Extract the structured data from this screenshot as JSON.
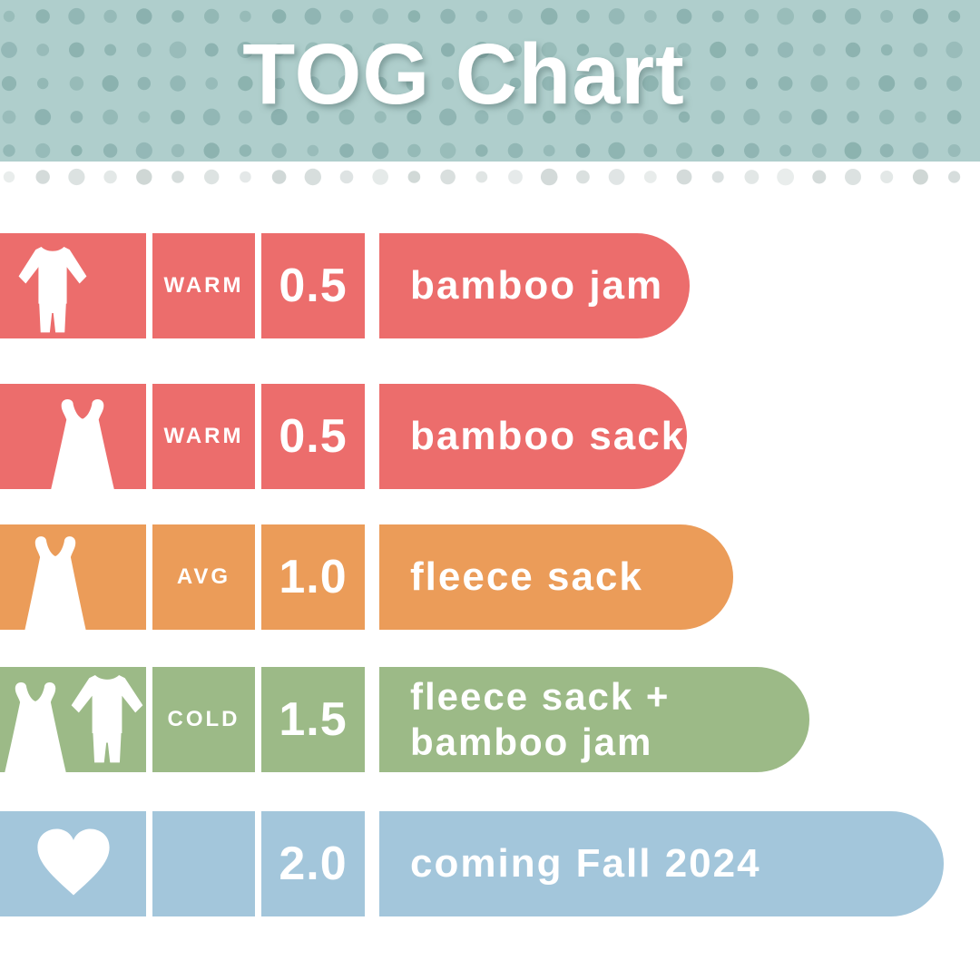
{
  "header": {
    "title": "TOG Chart",
    "background": "#AFCECC",
    "dot_color": "#7FA8A5",
    "below_banner_dot_color": "#AAB8B6"
  },
  "rows": [
    {
      "icons": [
        "pajamas-icon"
      ],
      "temp": "WARM",
      "tog": "0.5",
      "name": "bamboo jam",
      "color": "#EC6D6C"
    },
    {
      "icons": [
        "sleep-sack-icon"
      ],
      "temp": "WARM",
      "tog": "0.5",
      "name": "bamboo sack",
      "color": "#EC6D6C"
    },
    {
      "icons": [
        "sleep-sack-icon"
      ],
      "temp": "AVG",
      "tog": "1.0",
      "name": "fleece sack",
      "color": "#EB9C59"
    },
    {
      "icons": [
        "sleep-sack-icon",
        "pajamas-icon"
      ],
      "temp": "COLD",
      "tog": "1.5",
      "name": "fleece sack +\nbamboo jam",
      "color": "#9CBA87"
    },
    {
      "icons": [
        "heart-icon"
      ],
      "temp": "",
      "tog": "2.0",
      "name": "coming Fall 2024",
      "color": "#A3C6DB"
    }
  ],
  "chart_data": {
    "type": "table",
    "title": "TOG Chart",
    "columns": [
      "temperature",
      "tog",
      "product"
    ],
    "rows": [
      {
        "temperature": "WARM",
        "tog": 0.5,
        "product": "bamboo jam"
      },
      {
        "temperature": "WARM",
        "tog": 0.5,
        "product": "bamboo sack"
      },
      {
        "temperature": "AVG",
        "tog": 1.0,
        "product": "fleece sack"
      },
      {
        "temperature": "COLD",
        "tog": 1.5,
        "product": "fleece sack + bamboo jam"
      },
      {
        "temperature": "",
        "tog": 2.0,
        "product": "coming Fall 2024"
      }
    ]
  }
}
